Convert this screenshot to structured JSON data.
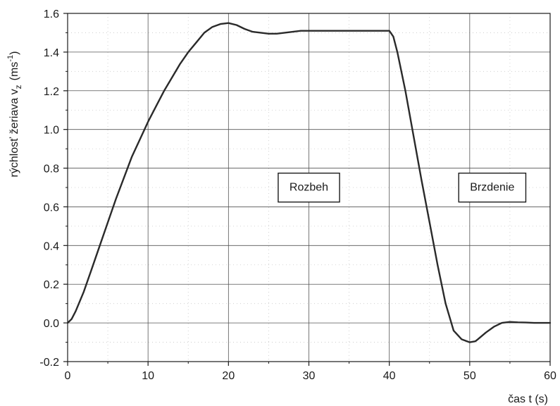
{
  "chart_data": {
    "type": "line",
    "xlabel": "čas t (s)",
    "ylabel_main": "rýchlosť žeriava v",
    "ylabel_sub": "z",
    "ylabel_unit": "(ms",
    "ylabel_sup": "-1",
    "ylabel_close": ")",
    "xlim": [
      0,
      60
    ],
    "ylim": [
      -0.2,
      1.6
    ],
    "xticks": [
      0,
      10,
      20,
      30,
      40,
      50,
      60
    ],
    "yticks": [
      -0.2,
      0.0,
      0.2,
      0.4,
      0.6,
      0.8,
      1.0,
      1.2,
      1.4,
      1.6
    ],
    "xtick_labels": [
      "0",
      "10",
      "20",
      "30",
      "40",
      "50",
      "60"
    ],
    "ytick_labels": [
      "-0.2",
      "0.0",
      "0.2",
      "0.4",
      "0.6",
      "0.8",
      "1.0",
      "1.2",
      "1.4",
      "1.6"
    ],
    "grid": true,
    "series": [
      {
        "color": "#2a2a2a",
        "x": [
          0,
          0.5,
          1,
          2,
          3,
          4,
          5,
          6,
          7,
          8,
          9,
          10,
          11,
          12,
          13,
          14,
          15,
          16,
          17,
          18,
          19,
          20,
          21,
          22,
          23,
          24,
          25,
          26,
          27,
          28,
          29,
          30,
          31,
          32,
          33,
          34,
          35,
          36,
          37,
          38,
          39,
          40,
          40.5,
          41,
          42,
          43,
          44,
          45,
          46,
          47,
          48,
          49,
          50,
          50.7,
          51,
          52,
          53,
          54,
          55,
          56,
          57,
          58,
          59,
          60
        ],
        "y": [
          0.0,
          0.02,
          0.06,
          0.16,
          0.28,
          0.4,
          0.52,
          0.64,
          0.75,
          0.86,
          0.95,
          1.04,
          1.12,
          1.2,
          1.27,
          1.34,
          1.4,
          1.45,
          1.5,
          1.53,
          1.545,
          1.55,
          1.54,
          1.52,
          1.505,
          1.5,
          1.495,
          1.495,
          1.5,
          1.505,
          1.51,
          1.51,
          1.51,
          1.51,
          1.51,
          1.51,
          1.51,
          1.51,
          1.51,
          1.51,
          1.51,
          1.51,
          1.48,
          1.4,
          1.2,
          0.97,
          0.74,
          0.52,
          0.3,
          0.1,
          -0.04,
          -0.085,
          -0.1,
          -0.095,
          -0.085,
          -0.05,
          -0.02,
          0.0,
          0.005,
          0.003,
          0.002,
          0.0,
          0.0,
          0.0
        ]
      }
    ],
    "annotations": [
      {
        "text": "Rozbeh",
        "x": 30,
        "y": 0.705
      },
      {
        "text": "Brzdenie",
        "x": 52.8,
        "y": 0.705
      }
    ]
  }
}
